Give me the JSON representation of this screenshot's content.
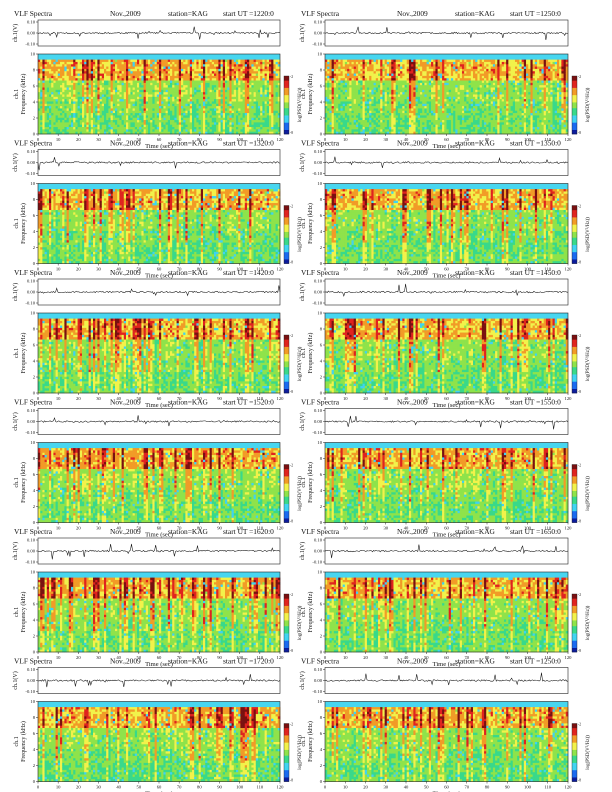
{
  "page": {
    "title": "VLF Spectra (KAG, Nov. 2009)"
  },
  "colors": {
    "background": "#47d6f0",
    "scale": [
      "#0a1a9c",
      "#1a6af0",
      "#3fd3f2",
      "#39d98a",
      "#8fe34a",
      "#f2f24a",
      "#f29b26",
      "#e0231e",
      "#7a1010"
    ]
  },
  "chart_data": [
    {
      "type": "heatmap",
      "title": "VLF Spectra",
      "date": "Nov.,2009",
      "station": "station=KAG",
      "start": "start UT =1220:0",
      "ylabel_top": "ch.1(V)",
      "ylabel_freq": "Frequency (kHz)",
      "channel": "ch.1",
      "xlabel": "Time (sec)",
      "colorbar_label": "log(PSD(V²/Hz))",
      "x_range": [
        0,
        120
      ],
      "y_range_khz": [
        0,
        10
      ],
      "y_range_v": [
        -0.1,
        0.1
      ],
      "cbar_range": [
        -8,
        -2
      ],
      "x_ticks": [
        "0",
        "10",
        "20",
        "30",
        "40",
        "50",
        "60",
        "70",
        "80",
        "90",
        "100",
        "110",
        "120"
      ],
      "y_ticks": [
        "0",
        "2",
        "4",
        "6",
        "8",
        "10"
      ],
      "top_ticks": [
        "0.10",
        "0.00",
        "-0.10"
      ],
      "seed": 11
    },
    {
      "type": "heatmap",
      "title": "VLF Spectra",
      "date": "Nov.,2009",
      "station": "station=KAG",
      "start": "start UT =1250:0",
      "ylabel_top": "ch.1(V)",
      "ylabel_freq": "Frequency (kHz)",
      "channel": "ch.1",
      "xlabel": "Time (sec)",
      "colorbar_label": "log(PSD(V²/Hz))",
      "x_range": [
        0,
        120
      ],
      "y_range_khz": [
        0,
        10
      ],
      "y_range_v": [
        -0.1,
        0.1
      ],
      "cbar_range": [
        -8,
        -2
      ],
      "x_ticks": [
        "0",
        "10",
        "20",
        "30",
        "40",
        "50",
        "60",
        "70",
        "80",
        "90",
        "100",
        "110",
        "120"
      ],
      "y_ticks": [
        "0",
        "2",
        "4",
        "6",
        "8",
        "10"
      ],
      "top_ticks": [
        "0.10",
        "0.00",
        "-0.10"
      ],
      "seed": 23
    },
    {
      "type": "heatmap",
      "title": "VLF Spectra",
      "date": "Nov.,2009",
      "station": "station=KAG",
      "start": "start UT =1320:0",
      "ylabel_top": "ch.1(V)",
      "ylabel_freq": "Frequency (kHz)",
      "channel": "ch.1",
      "xlabel": "Time (sec)",
      "colorbar_label": "log(PSD(V²/Hz))",
      "x_range": [
        0,
        120
      ],
      "y_range_khz": [
        0,
        10
      ],
      "y_range_v": [
        -0.1,
        0.1
      ],
      "cbar_range": [
        -8,
        -2
      ],
      "x_ticks": [
        "0",
        "10",
        "20",
        "30",
        "40",
        "50",
        "60",
        "70",
        "80",
        "90",
        "100",
        "110",
        "120"
      ],
      "y_ticks": [
        "0",
        "2",
        "4",
        "6",
        "8",
        "10"
      ],
      "top_ticks": [
        "0.10",
        "0.00",
        "-0.10"
      ],
      "seed": 37
    },
    {
      "type": "heatmap",
      "title": "VLF Spectra",
      "date": "Nov.,2009",
      "station": "station=KAG",
      "start": "start UT =1350:0",
      "ylabel_top": "ch.1(V)",
      "ylabel_freq": "Frequency (kHz)",
      "channel": "ch.1",
      "xlabel": "Time (sec)",
      "colorbar_label": "log(PSD(V²/Hz))",
      "x_range": [
        0,
        120
      ],
      "y_range_khz": [
        0,
        10
      ],
      "y_range_v": [
        -0.1,
        0.1
      ],
      "cbar_range": [
        -8,
        -2
      ],
      "x_ticks": [
        "0",
        "10",
        "20",
        "30",
        "40",
        "50",
        "60",
        "70",
        "80",
        "90",
        "100",
        "110",
        "120"
      ],
      "y_ticks": [
        "0",
        "2",
        "4",
        "6",
        "8",
        "10"
      ],
      "top_ticks": [
        "0.10",
        "0.00",
        "-0.10"
      ],
      "seed": 41
    },
    {
      "type": "heatmap",
      "title": "VLF Spectra",
      "date": "Nov.,2009",
      "station": "station=KAG",
      "start": "start UT =1420:0",
      "ylabel_top": "ch.1(V)",
      "ylabel_freq": "Frequency (kHz)",
      "channel": "ch.1",
      "xlabel": "Time (sec)",
      "colorbar_label": "log(PSD(V²/Hz))",
      "x_range": [
        0,
        120
      ],
      "y_range_khz": [
        0,
        10
      ],
      "y_range_v": [
        -0.1,
        0.1
      ],
      "cbar_range": [
        -8,
        -2
      ],
      "x_ticks": [
        "0",
        "10",
        "20",
        "30",
        "40",
        "50",
        "60",
        "70",
        "80",
        "90",
        "100",
        "110",
        "120"
      ],
      "y_ticks": [
        "0",
        "2",
        "4",
        "6",
        "8",
        "10"
      ],
      "top_ticks": [
        "0.10",
        "0.00",
        "-0.10"
      ],
      "seed": 53
    },
    {
      "type": "heatmap",
      "title": "VLF Spectra",
      "date": "Nov.,2009",
      "station": "station=KAG",
      "start": "start UT =1450:0",
      "ylabel_top": "ch.1(V)",
      "ylabel_freq": "Frequency (kHz)",
      "channel": "ch.1",
      "xlabel": "Time (sec)",
      "colorbar_label": "log(PSD(V²/Hz))",
      "x_range": [
        0,
        120
      ],
      "y_range_khz": [
        0,
        10
      ],
      "y_range_v": [
        -0.1,
        0.1
      ],
      "cbar_range": [
        -8,
        -2
      ],
      "x_ticks": [
        "0",
        "10",
        "20",
        "30",
        "40",
        "50",
        "60",
        "70",
        "80",
        "90",
        "100",
        "110",
        "120"
      ],
      "y_ticks": [
        "0",
        "2",
        "4",
        "6",
        "8",
        "10"
      ],
      "top_ticks": [
        "0.10",
        "0.00",
        "-0.10"
      ],
      "seed": 67
    },
    {
      "type": "heatmap",
      "title": "VLF Spectra",
      "date": "Nov.,2009",
      "station": "station=KAG",
      "start": "start UT =1520:0",
      "ylabel_top": "ch.1(V)",
      "ylabel_freq": "Frequency (kHz)",
      "channel": "ch.1",
      "xlabel": "Time (sec)",
      "colorbar_label": "log(PSD(V²/Hz))",
      "x_range": [
        0,
        120
      ],
      "y_range_khz": [
        0,
        10
      ],
      "y_range_v": [
        -0.1,
        0.1
      ],
      "cbar_range": [
        -8,
        -2
      ],
      "x_ticks": [
        "0",
        "10",
        "20",
        "30",
        "40",
        "50",
        "60",
        "70",
        "80",
        "90",
        "100",
        "110",
        "120"
      ],
      "y_ticks": [
        "0",
        "2",
        "4",
        "6",
        "8",
        "10"
      ],
      "top_ticks": [
        "0.10",
        "0.00",
        "-0.10"
      ],
      "seed": 71
    },
    {
      "type": "heatmap",
      "title": "VLF Spectra",
      "date": "Nov.,2009",
      "station": "station=KAG",
      "start": "start UT =1550:0",
      "ylabel_top": "ch.1(V)",
      "ylabel_freq": "Frequency (kHz)",
      "channel": "ch.1",
      "xlabel": "Time (sec)",
      "colorbar_label": "log(PSD(V²/Hz))",
      "x_range": [
        0,
        120
      ],
      "y_range_khz": [
        0,
        10
      ],
      "y_range_v": [
        -0.1,
        0.1
      ],
      "cbar_range": [
        -8,
        -2
      ],
      "x_ticks": [
        "0",
        "10",
        "20",
        "30",
        "40",
        "50",
        "60",
        "70",
        "80",
        "90",
        "100",
        "110",
        "120"
      ],
      "y_ticks": [
        "0",
        "2",
        "4",
        "6",
        "8",
        "10"
      ],
      "top_ticks": [
        "0.10",
        "0.00",
        "-0.10"
      ],
      "seed": 83
    },
    {
      "type": "heatmap",
      "title": "VLF Spectra",
      "date": "Nov.,2009",
      "station": "station=KAG",
      "start": "start UT =1620:0",
      "ylabel_top": "ch.1(V)",
      "ylabel_freq": "Frequency (kHz)",
      "channel": "ch.1",
      "xlabel": "Time (sec)",
      "colorbar_label": "log(PSD(V²/Hz))",
      "x_range": [
        0,
        120
      ],
      "y_range_khz": [
        0,
        10
      ],
      "y_range_v": [
        -0.1,
        0.1
      ],
      "cbar_range": [
        -8,
        -2
      ],
      "x_ticks": [
        "0",
        "10",
        "20",
        "30",
        "40",
        "50",
        "60",
        "70",
        "80",
        "90",
        "100",
        "110",
        "120"
      ],
      "y_ticks": [
        "0",
        "2",
        "4",
        "6",
        "8",
        "10"
      ],
      "top_ticks": [
        "0.10",
        "0.00",
        "-0.10"
      ],
      "seed": 97
    },
    {
      "type": "heatmap",
      "title": "VLF Spectra",
      "date": "Nov.,2009",
      "station": "station=KAG",
      "start": "start UT =1650:0",
      "ylabel_top": "ch.1(V)",
      "ylabel_freq": "Frequency (kHz)",
      "channel": "ch.1",
      "xlabel": "Time (sec)",
      "colorbar_label": "log(PSD(V²/Hz))",
      "x_range": [
        0,
        120
      ],
      "y_range_khz": [
        0,
        10
      ],
      "y_range_v": [
        -0.1,
        0.1
      ],
      "cbar_range": [
        -8,
        -2
      ],
      "x_ticks": [
        "0",
        "10",
        "20",
        "30",
        "40",
        "50",
        "60",
        "70",
        "80",
        "90",
        "100",
        "110",
        "120"
      ],
      "y_ticks": [
        "0",
        "2",
        "4",
        "6",
        "8",
        "10"
      ],
      "top_ticks": [
        "0.10",
        "0.00",
        "-0.10"
      ],
      "seed": 101
    },
    {
      "type": "heatmap",
      "title": "VLF Spectra",
      "date": "Nov.,2009",
      "station": "station=KAG",
      "start": "start UT =1720:0",
      "ylabel_top": "ch.1(V)",
      "ylabel_freq": "Frequency (kHz)",
      "channel": "ch.1",
      "xlabel": "Time (sec)",
      "colorbar_label": "log(PSD(V²/Hz))",
      "x_range": [
        0,
        120
      ],
      "y_range_khz": [
        0,
        10
      ],
      "y_range_v": [
        -0.1,
        0.1
      ],
      "cbar_range": [
        -8,
        -2
      ],
      "x_ticks": [
        "0",
        "10",
        "20",
        "30",
        "40",
        "50",
        "60",
        "70",
        "80",
        "90",
        "100",
        "110",
        "120"
      ],
      "y_ticks": [
        "0",
        "2",
        "4",
        "6",
        "8",
        "10"
      ],
      "top_ticks": [
        "0.10",
        "0.00",
        "-0.10"
      ],
      "seed": 113
    },
    {
      "type": "heatmap",
      "title": "VLF Spectra",
      "date": "Nov.,2009",
      "station": "station=KAG",
      "start": "start UT =1250:0",
      "ylabel_top": "ch.1(V)",
      "ylabel_freq": "Frequency (kHz)",
      "channel": "ch.1",
      "xlabel": "Time (sec)",
      "colorbar_label": "log(PSD(V²/Hz))",
      "x_range": [
        0,
        120
      ],
      "y_range_khz": [
        0,
        10
      ],
      "y_range_v": [
        -0.1,
        0.1
      ],
      "cbar_range": [
        -8,
        -2
      ],
      "x_ticks": [
        "0",
        "10",
        "20",
        "30",
        "40",
        "50",
        "60",
        "70",
        "80",
        "90",
        "100",
        "110",
        "120"
      ],
      "y_ticks": [
        "0",
        "2",
        "4",
        "6",
        "8",
        "10"
      ],
      "top_ticks": [
        "0.10",
        "0.00",
        "-0.10"
      ],
      "seed": 127
    }
  ]
}
